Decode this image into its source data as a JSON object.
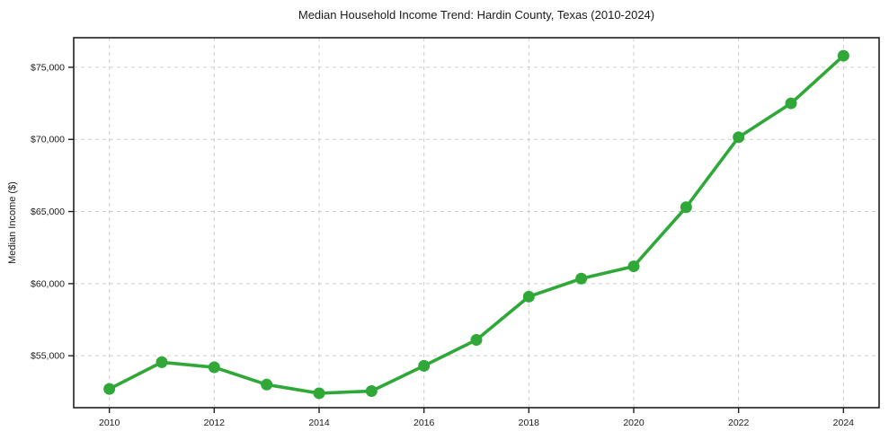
{
  "figure": {
    "title": "Median Household Income Trend: Hardin County, Texas (2010-2024)",
    "ylabel": "Median Income ($)"
  },
  "chart_data": {
    "type": "line",
    "title": "Median Household Income Trend: Hardin County, Texas (2010-2024)",
    "xlabel": "",
    "ylabel": "Median Income ($)",
    "x": [
      2010,
      2011,
      2012,
      2013,
      2014,
      2015,
      2016,
      2017,
      2018,
      2019,
      2020,
      2021,
      2022,
      2023,
      2024
    ],
    "values": [
      52700,
      54550,
      54200,
      53000,
      52400,
      52550,
      54300,
      56100,
      59100,
      60350,
      61200,
      65300,
      70150,
      72500,
      75800
    ],
    "xticks": [
      2010,
      2012,
      2014,
      2016,
      2018,
      2020,
      2022,
      2024
    ],
    "xtick_labels": [
      "2010",
      "2012",
      "2014",
      "2016",
      "2018",
      "2020",
      "2022",
      "2024"
    ],
    "yticks": [
      55000,
      60000,
      65000,
      70000,
      75000
    ],
    "ytick_labels": [
      "$55,000",
      "$60,000",
      "$65,000",
      "$70,000",
      "$75,000"
    ],
    "xlim": [
      2009.32,
      2024.68
    ],
    "ylim": [
      51400,
      77050
    ],
    "grid": true,
    "legend": false,
    "line_color": "#2fa838",
    "marker": "circle",
    "marker_radius": 6.5,
    "line_width": 3.6,
    "grid_color": "#cdcdcd",
    "spine_color": "#1f1f1f",
    "background": "#ffffff"
  }
}
